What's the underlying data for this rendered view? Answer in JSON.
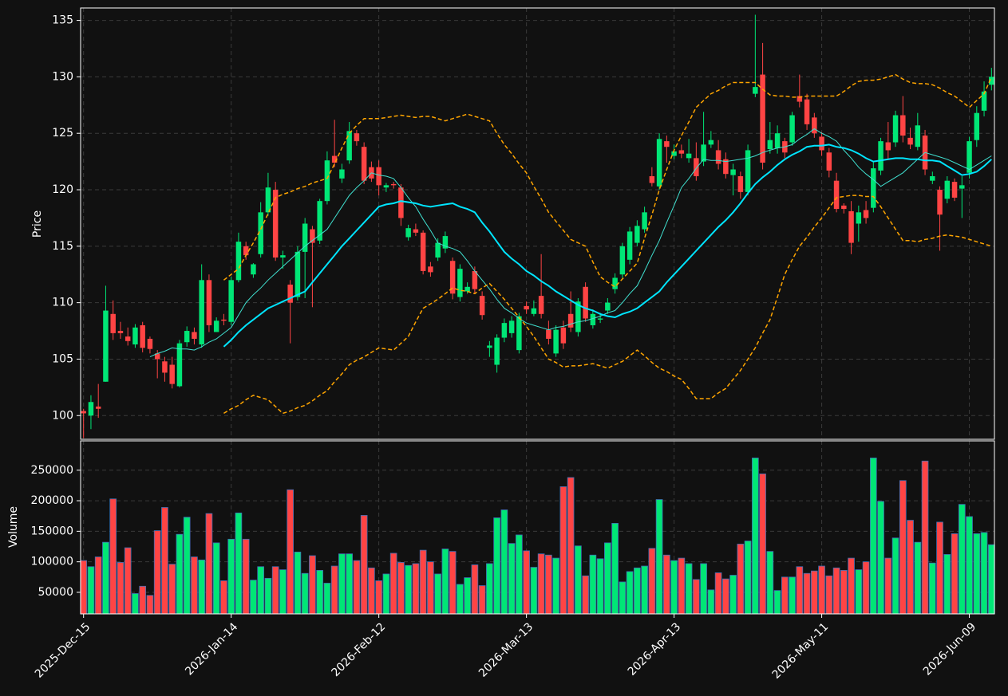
{
  "chart_data": {
    "type": "candlestick",
    "ylabel": "Price",
    "volume_ylabel": "Volume",
    "up_color": "#00e676",
    "down_color": "#ff4444",
    "grid": true,
    "categories": [
      "2025-Dec-15",
      null,
      null,
      null,
      null,
      null,
      null,
      null,
      null,
      null,
      null,
      null,
      null,
      null,
      null,
      null,
      null,
      null,
      null,
      null,
      "2026-Jan-14",
      null,
      null,
      null,
      null,
      null,
      null,
      null,
      null,
      null,
      null,
      null,
      null,
      null,
      null,
      null,
      null,
      null,
      null,
      null,
      "2026-Feb-12",
      null,
      null,
      null,
      null,
      null,
      null,
      null,
      null,
      null,
      null,
      null,
      null,
      null,
      null,
      null,
      null,
      null,
      null,
      null,
      "2026-Mar-13",
      null,
      null,
      null,
      null,
      null,
      null,
      null,
      null,
      null,
      null,
      null,
      null,
      null,
      null,
      null,
      null,
      null,
      null,
      null,
      "2026-Apr-13",
      null,
      null,
      null,
      null,
      null,
      null,
      null,
      null,
      null,
      null,
      null,
      null,
      null,
      null,
      null,
      null,
      null,
      null,
      null,
      "2026-May-11",
      null,
      null,
      null,
      null,
      null,
      null,
      null,
      null,
      null,
      null,
      null,
      null,
      null,
      null,
      null,
      null,
      null,
      null,
      null,
      "2026-Jun-09",
      null,
      null,
      null
    ],
    "open": [
      100.4,
      100,
      100.8,
      103,
      109,
      107.5,
      107,
      106.3,
      108,
      106.8,
      105.5,
      104.8,
      104.5,
      102.6,
      106.5,
      107.4,
      106.3,
      112,
      107.4,
      108.5,
      108.3,
      112,
      115,
      112.5,
      114.3,
      118,
      120,
      114,
      111.6,
      110.5,
      114.5,
      116.5,
      115.5,
      119,
      123,
      121,
      122.6,
      125,
      123.8,
      122,
      122,
      120.2,
      120.5,
      120.2,
      115.8,
      116.5,
      116.2,
      113.2,
      114,
      114.8,
      113.7,
      110.5,
      111,
      112.8,
      110.6,
      106,
      104.5,
      106.9,
      107.3,
      105.8,
      109.7,
      109,
      110.6,
      107.6,
      105.5,
      107.8,
      109,
      107.4,
      111.4,
      108,
      108.5,
      109.3,
      111.2,
      112.5,
      113.8,
      115.3,
      116.5,
      121.2,
      120.3,
      124.3,
      123,
      123.5,
      122.8,
      122.8,
      122.5,
      124,
      123.5,
      122.7,
      121.3,
      121.2,
      119.8,
      128.5,
      130.2,
      123.6,
      123.7,
      124.3,
      124.2,
      128.3,
      128,
      126.4,
      124.7,
      123.3,
      120.8,
      118.6,
      118.1,
      117,
      118.2,
      118.4,
      121.7,
      124.2,
      124.2,
      126.6,
      124.6,
      123.8,
      124.8,
      120.8,
      120,
      119.2,
      120.7,
      120.1,
      121.5,
      124.4,
      127,
      129.3
    ],
    "high": [
      100.6,
      101.8,
      102.8,
      111.5,
      110.2,
      108.3,
      107.8,
      108.1,
      108.3,
      107,
      105.8,
      105.2,
      105.2,
      106.7,
      107.9,
      107.8,
      113.4,
      112.5,
      108.7,
      109,
      112.3,
      116.2,
      115.4,
      113.5,
      118.9,
      121.5,
      120.7,
      114.6,
      112,
      115,
      117.5,
      116.8,
      119.2,
      123.4,
      126.2,
      122.3,
      126,
      125.3,
      124.2,
      122.5,
      122.6,
      120.6,
      120.7,
      120.5,
      116.9,
      117,
      116.4,
      113.6,
      115.7,
      116.3,
      114,
      113.4,
      111.8,
      113.2,
      111,
      106.6,
      107.2,
      108.6,
      108.8,
      109.1,
      110.1,
      110.2,
      114.3,
      108.4,
      108,
      108.4,
      111,
      110.4,
      111.8,
      109.4,
      109.1,
      110.4,
      112.6,
      115.3,
      116.7,
      117.3,
      118.5,
      122,
      125,
      124.8,
      124,
      124,
      124.5,
      124.2,
      126.9,
      125.2,
      124.4,
      123.3,
      122.3,
      121.6,
      124,
      135.5,
      133,
      126,
      125.7,
      124.6,
      126.9,
      130.2,
      128.5,
      126.8,
      125.1,
      123.7,
      121.5,
      118.8,
      119,
      118.6,
      119,
      122.5,
      124.6,
      126,
      127,
      128.3,
      125.5,
      126.8,
      125.3,
      121.6,
      120.3,
      121.2,
      121,
      121.2,
      124.7,
      127.4,
      129.6,
      130.8
    ],
    "low": [
      98,
      98.8,
      99.8,
      103,
      106.7,
      106.8,
      106.2,
      106,
      105.6,
      105.5,
      103.3,
      103,
      102.4,
      102.5,
      106.1,
      106.3,
      106,
      107.4,
      107.4,
      108,
      108,
      111.8,
      113.8,
      112.2,
      114,
      117.7,
      113.7,
      113,
      106.4,
      110.2,
      110.4,
      109.6,
      115.2,
      118.7,
      122,
      120.6,
      122.3,
      123.9,
      120.5,
      120.7,
      119.5,
      119.8,
      120.1,
      116.8,
      115.5,
      115.9,
      112.5,
      112.3,
      113.7,
      114.4,
      110.3,
      110.1,
      110.8,
      110.8,
      108.5,
      105.2,
      103.8,
      106.5,
      106.9,
      105.5,
      109,
      108.8,
      108.6,
      106.3,
      105.2,
      105.9,
      107.4,
      107,
      108.3,
      107.7,
      108.2,
      109,
      110.8,
      112.2,
      113.4,
      115,
      116.2,
      120.3,
      120,
      122.4,
      122.7,
      122.8,
      122.4,
      120.8,
      122.1,
      123.7,
      121.8,
      121,
      119.5,
      119.2,
      119.5,
      128.2,
      121.8,
      123.2,
      123.2,
      122.8,
      123.9,
      127.3,
      125.3,
      124.6,
      123,
      121.1,
      118,
      117.9,
      114.3,
      115.4,
      117,
      118,
      121.3,
      122.7,
      123.8,
      124.2,
      123.6,
      123.5,
      121.3,
      120.5,
      114.6,
      118.8,
      119,
      117.5,
      121,
      123.8,
      126.5,
      128.8
    ],
    "close": [
      100.2,
      101.2,
      100.6,
      109.3,
      107.3,
      107.3,
      106.6,
      107.8,
      106,
      105.9,
      105,
      103.8,
      102.8,
      106.4,
      107.5,
      106.8,
      112,
      108,
      108.4,
      108.4,
      112,
      115.4,
      114.2,
      113.4,
      118,
      120.2,
      114,
      114.2,
      110,
      114.5,
      117,
      115.3,
      119,
      122.6,
      122.4,
      121.8,
      125.2,
      124.3,
      120.8,
      121,
      120.4,
      120.4,
      120.4,
      117.5,
      116.6,
      116.2,
      112.8,
      112.7,
      115.3,
      115.9,
      110.8,
      113,
      111.4,
      111.2,
      108.9,
      106.2,
      106.9,
      108.2,
      108.4,
      108.8,
      109.4,
      109.5,
      109,
      106.8,
      107.6,
      106.4,
      107.8,
      110.1,
      108.6,
      109,
      108.6,
      110,
      112.2,
      115,
      116.3,
      116.8,
      118,
      120.6,
      124.5,
      123.8,
      123.4,
      123.2,
      123.2,
      121.2,
      124,
      124.4,
      122.3,
      121.4,
      121.8,
      119.8,
      123.5,
      129.1,
      122.4,
      124.4,
      125,
      123.3,
      126.6,
      127.8,
      125.8,
      125,
      123.5,
      121.7,
      118.3,
      118.3,
      115.3,
      118,
      117.5,
      121.9,
      124.3,
      123.5,
      126.6,
      124.8,
      124,
      125.7,
      121.8,
      121.2,
      117.8,
      120.8,
      119.3,
      120.4,
      124.3,
      126.8,
      128.7,
      130
    ],
    "volume": [
      102000,
      92000,
      108000,
      132000,
      203000,
      99000,
      123000,
      48000,
      60000,
      45000,
      151000,
      189000,
      96000,
      145000,
      173000,
      108000,
      103000,
      179000,
      131000,
      69000,
      137000,
      180000,
      137000,
      70000,
      92000,
      73000,
      92000,
      87000,
      218000,
      116000,
      81000,
      110000,
      86000,
      65000,
      93000,
      113000,
      113000,
      102000,
      176000,
      90000,
      69000,
      80000,
      114000,
      99000,
      94000,
      97000,
      119000,
      100000,
      80000,
      121000,
      117000,
      63000,
      74000,
      95000,
      61000,
      97000,
      172000,
      185000,
      130000,
      144000,
      118000,
      91000,
      113000,
      111000,
      106000,
      223000,
      238000,
      126000,
      77000,
      111000,
      105000,
      131000,
      163000,
      67000,
      84000,
      90000,
      93000,
      122000,
      202000,
      111000,
      102000,
      106000,
      97000,
      71000,
      97000,
      54000,
      82000,
      72000,
      78000,
      129000,
      134000,
      270000,
      244000,
      117000,
      53000,
      75000,
      75000,
      92000,
      81000,
      85000,
      93000,
      77000,
      90000,
      86000,
      106000,
      87000,
      100000,
      270000,
      199000,
      106000,
      139000,
      233000,
      168000,
      132000,
      265000,
      98000,
      165000,
      112000,
      146000,
      194000,
      174000,
      146000,
      148000,
      128000
    ],
    "lines": [
      {
        "color": "#40e0d0",
        "width": 1,
        "dashed": false,
        "values": [
          null,
          null,
          null,
          null,
          null,
          null,
          null,
          null,
          null,
          105.2,
          105.5,
          105.7,
          106,
          105.9,
          105.9,
          105.8,
          106.1,
          106.5,
          106.8,
          107.3,
          107.8,
          108.9,
          110,
          110.7,
          111.3,
          112,
          112.6,
          113.2,
          113.8,
          114.4,
          115,
          115.5,
          116,
          116.5,
          117.5,
          118.5,
          119.5,
          120.2,
          120.8,
          121.5,
          121.3,
          121.2,
          121,
          120.2,
          119.3,
          118.5,
          117.4,
          116.4,
          115.3,
          115,
          114.8,
          114.5,
          113.7,
          112.8,
          112,
          111.2,
          110.3,
          109.5,
          109.1,
          108.6,
          108.2,
          108,
          107.8,
          107.6,
          107.8,
          107.9,
          108.1,
          108.3,
          108.4,
          108.6,
          108.8,
          109.1,
          109.3,
          110,
          110.8,
          111.5,
          112.8,
          114.2,
          115.5,
          117.1,
          118.6,
          120.2,
          121,
          121.9,
          122.7,
          122.6,
          122.6,
          122.5,
          122.6,
          122.7,
          122.8,
          123,
          123.3,
          123.5,
          123.7,
          123.8,
          124,
          124.5,
          124.9,
          125.4,
          125,
          124.7,
          124.3,
          123.5,
          122.8,
          122,
          121.4,
          120.9,
          120.3,
          120.7,
          121.1,
          121.5,
          122.1,
          122.7,
          123.3,
          123.1,
          122.9,
          122.7,
          122.4,
          122.1,
          121.8,
          122.2,
          122.6,
          123
        ]
      },
      {
        "color": "#00e5ff",
        "width": 2,
        "dashed": false,
        "values": [
          null,
          null,
          null,
          null,
          null,
          null,
          null,
          null,
          null,
          null,
          null,
          null,
          null,
          null,
          null,
          null,
          null,
          null,
          null,
          106.1,
          106.7,
          107.4,
          108,
          108.5,
          109,
          109.5,
          109.8,
          110.1,
          110.4,
          110.7,
          111,
          111.8,
          112.6,
          113.4,
          114.2,
          115,
          115.7,
          116.4,
          117.1,
          117.8,
          118.5,
          118.7,
          118.8,
          119,
          118.9,
          118.8,
          118.6,
          118.5,
          118.6,
          118.7,
          118.8,
          118.5,
          118.3,
          118,
          117.1,
          116.3,
          115.4,
          114.5,
          113.9,
          113.4,
          112.8,
          112.4,
          111.9,
          111.5,
          111,
          110.6,
          110.2,
          109.8,
          109.5,
          109.3,
          109,
          108.8,
          108.7,
          109,
          109.2,
          109.5,
          110,
          110.5,
          111,
          111.8,
          112.5,
          113.2,
          113.9,
          114.6,
          115.3,
          116,
          116.7,
          117.3,
          118,
          118.8,
          119.7,
          120.5,
          121.1,
          121.6,
          122.2,
          122.7,
          123.1,
          123.4,
          123.8,
          123.9,
          123.9,
          124,
          123.8,
          123.7,
          123.5,
          123.2,
          122.8,
          122.5,
          122.6,
          122.7,
          122.8,
          122.8,
          122.7,
          122.7,
          122.6,
          122.6,
          122.5,
          122.1,
          121.7,
          121.3,
          121.4,
          121.6,
          122.1,
          122.7
        ]
      },
      {
        "color": "#ffa500",
        "width": 1.5,
        "dashed": true,
        "values": [
          null,
          null,
          null,
          null,
          null,
          null,
          null,
          null,
          null,
          null,
          null,
          null,
          null,
          null,
          null,
          null,
          null,
          null,
          null,
          112,
          112.5,
          113,
          114.2,
          115.3,
          116.5,
          117.9,
          119.3,
          119.6,
          119.8,
          120.1,
          120.3,
          120.6,
          120.8,
          121,
          122.3,
          123.7,
          125,
          125.7,
          126.3,
          126.3,
          126.3,
          126.4,
          126.5,
          126.6,
          126.5,
          126.4,
          126.5,
          126.5,
          126.3,
          126.1,
          126.3,
          126.5,
          126.7,
          126.5,
          126.3,
          126.1,
          125,
          124,
          123.2,
          122.3,
          121.5,
          120.3,
          119.2,
          118,
          117.2,
          116.4,
          115.6,
          115.3,
          115,
          113.6,
          112.3,
          111.8,
          111.4,
          112.1,
          112.8,
          113.5,
          115.7,
          117.8,
          120,
          121.8,
          123.5,
          124.8,
          126,
          127.3,
          127.9,
          128.5,
          128.8,
          129.2,
          129.5,
          129.5,
          129.5,
          129.5,
          128.9,
          128.4,
          128.3,
          128.3,
          128.2,
          128.2,
          128.3,
          128.3,
          128.3,
          128.3,
          128.3,
          128.7,
          129.2,
          129.6,
          129.7,
          129.7,
          129.8,
          130,
          130.2,
          129.8,
          129.5,
          129.4,
          129.4,
          129.3,
          129,
          128.6,
          128.3,
          127.8,
          127.3,
          127.9,
          128.5,
          130
        ]
      },
      {
        "color": "#ffa500",
        "width": 1.5,
        "dashed": true,
        "values": [
          null,
          null,
          null,
          null,
          null,
          null,
          null,
          null,
          null,
          null,
          null,
          null,
          null,
          null,
          null,
          null,
          null,
          null,
          null,
          100.2,
          100.6,
          100.9,
          101.4,
          101.8,
          101.6,
          101.4,
          100.8,
          100.2,
          100.4,
          100.7,
          100.9,
          101.3,
          101.8,
          102.2,
          103,
          103.7,
          104.5,
          104.9,
          105.2,
          105.6,
          106,
          105.9,
          105.8,
          106.4,
          107,
          108.3,
          109.5,
          109.9,
          110.3,
          110.8,
          111.3,
          111.1,
          111,
          110.8,
          111.3,
          111.7,
          111,
          110.3,
          109.5,
          108.7,
          107.9,
          107,
          106,
          105,
          104.7,
          104.3,
          104.4,
          104.4,
          104.5,
          104.6,
          104.4,
          104.2,
          104.5,
          104.8,
          105.3,
          105.8,
          105.3,
          104.7,
          104.2,
          103.9,
          103.5,
          103.2,
          102.4,
          101.5,
          101.5,
          101.5,
          102,
          102.4,
          103.2,
          104,
          105,
          106,
          107.3,
          108.5,
          110.5,
          112.5,
          113.8,
          115,
          115.8,
          116.7,
          117.5,
          118.4,
          119.3,
          119.4,
          119.5,
          119.5,
          119.4,
          119.4,
          118.5,
          117.5,
          116.5,
          115.5,
          115.5,
          115.4,
          115.6,
          115.7,
          115.9,
          116,
          115.9,
          115.8,
          115.6,
          115.4,
          115.2,
          115
        ]
      }
    ],
    "ylim": [
      97.9,
      136.1
    ],
    "yticks": [
      100,
      105,
      110,
      115,
      120,
      125,
      130,
      135
    ],
    "volume_ylim": [
      14700,
      298000
    ],
    "volume_yticks": [
      50000,
      100000,
      150000,
      200000,
      250000
    ]
  }
}
